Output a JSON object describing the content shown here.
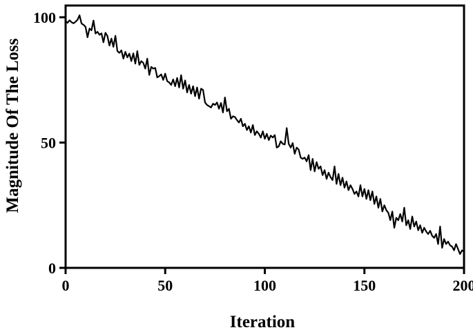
{
  "chart_data": {
    "type": "line",
    "title": "",
    "xlabel": "Iteration",
    "ylabel": "Magnitude Of The Loss",
    "xlim": [
      0,
      200
    ],
    "ylim": [
      0,
      100
    ],
    "xticks": [
      "0",
      "50",
      "100",
      "150",
      "200"
    ],
    "yticks": [
      "0",
      "50",
      "100"
    ],
    "grid": false,
    "legend": "none",
    "line_color": "#000000",
    "series": [
      {
        "values": [
          98.5,
          97.8,
          98.8,
          98.0,
          97.6,
          98.2,
          99.0,
          100.8,
          97.5,
          97.0,
          96.2,
          92.0,
          95.5,
          94.8,
          98.7,
          93.5,
          94.2,
          93.0,
          93.6,
          90.0,
          93.8,
          92.5,
          88.7,
          91.5,
          88.2,
          92.6,
          86.5,
          85.8,
          86.8,
          83.5,
          86.2,
          84.0,
          85.5,
          82.5,
          85.6,
          81.5,
          86.5,
          81.0,
          82.5,
          81.8,
          79.5,
          83.5,
          77.0,
          80.2,
          79.5,
          79.8,
          76.0,
          76.5,
          77.2,
          75.0,
          77.5,
          74.5,
          74.0,
          73.0,
          75.2,
          72.5,
          75.8,
          72.0,
          76.9,
          71.5,
          74.8,
          70.0,
          73.0,
          69.5,
          72.5,
          68.5,
          72.0,
          67.5,
          71.5,
          71.0,
          66.0,
          65.0,
          64.5,
          64.0,
          65.5,
          65.0,
          66.0,
          63.5,
          65.8,
          62.0,
          68.0,
          62.5,
          63.5,
          59.5,
          60.5,
          60.2,
          59.0,
          58.0,
          59.5,
          56.5,
          57.5,
          55.0,
          56.5,
          54.0,
          57.0,
          53.0,
          54.5,
          53.5,
          52.0,
          54.5,
          51.5,
          53.5,
          51.0,
          52.8,
          52.0,
          53.0,
          48.0,
          48.5,
          50.5,
          49.5,
          49.2,
          55.8,
          49.5,
          48.0,
          49.8,
          45.5,
          48.0,
          47.2,
          44.0,
          43.5,
          44.0,
          42.5,
          45.0,
          39.0,
          43.5,
          38.5,
          42.2,
          39.5,
          40.5,
          37.0,
          39.0,
          35.5,
          38.0,
          36.2,
          35.0,
          40.5,
          33.5,
          37.5,
          33.0,
          36.0,
          32.0,
          34.5,
          31.0,
          33.0,
          31.5,
          29.5,
          30.5,
          28.5,
          33.0,
          28.5,
          31.5,
          27.5,
          31.0,
          27.0,
          30.5,
          25.5,
          28.5,
          24.0,
          27.5,
          22.5,
          25.0,
          23.0,
          22.0,
          19.0,
          22.5,
          16.0,
          20.0,
          19.0,
          21.5,
          18.5,
          24.0,
          17.0,
          19.0,
          15.5,
          20.5,
          16.5,
          18.5,
          15.0,
          17.0,
          14.0,
          16.0,
          14.5,
          13.5,
          14.8,
          12.8,
          12.0,
          13.5,
          9.5,
          16.5,
          8.0,
          11.5,
          9.5,
          10.5,
          9.0,
          8.5,
          7.0,
          9.5,
          7.5,
          5.5,
          7.0,
          6.5
        ]
      }
    ]
  }
}
